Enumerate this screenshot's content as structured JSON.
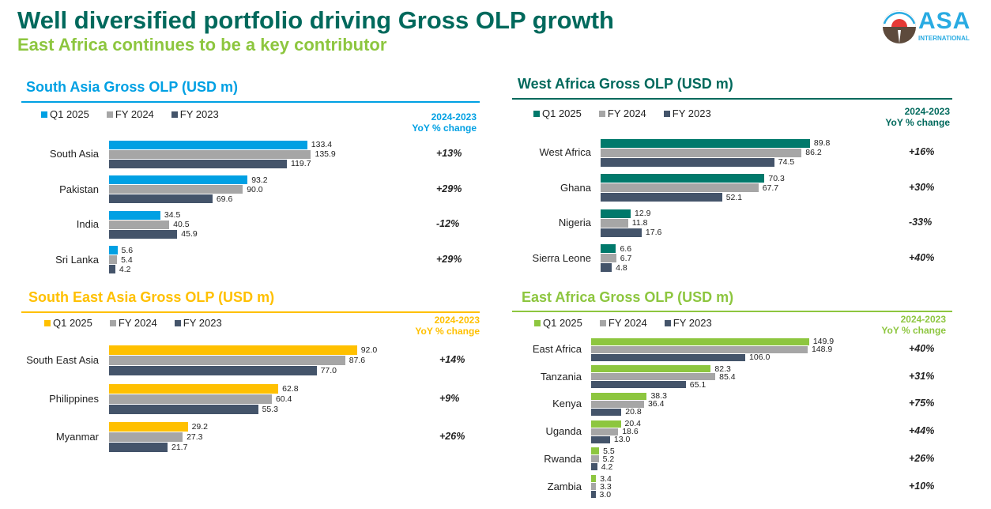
{
  "header": {
    "title": "Well diversified portfolio driving Gross OLP growth",
    "subtitle": "East Africa continues to be a key contributor"
  },
  "logo": {
    "name": "ASA",
    "sub": "INTERNATIONAL"
  },
  "legend": [
    "Q1 2025",
    "FY 2024",
    "FY 2023"
  ],
  "yoy_header": [
    "2024-2023",
    "YoY % change"
  ],
  "colors": {
    "gray": "#a6a6a6",
    "dark": "#44546a"
  },
  "chart_data": [
    {
      "type": "bar",
      "title": "South Asia Gross OLP  (USD m)",
      "color": "#00a0e3",
      "categories": [
        "South Asia",
        "Pakistan",
        "India",
        "Sri Lanka"
      ],
      "series": [
        {
          "name": "Q1 2025",
          "values": [
            133.4,
            93.2,
            34.5,
            5.6
          ]
        },
        {
          "name": "FY 2024",
          "values": [
            135.9,
            90.0,
            40.5,
            5.4
          ]
        },
        {
          "name": "FY 2023",
          "values": [
            119.7,
            69.6,
            45.9,
            4.2
          ]
        }
      ],
      "yoy": [
        "+13%",
        "+29%",
        "-12%",
        "+29%"
      ]
    },
    {
      "type": "bar",
      "title": "South East Asia Gross OLP (USD m)",
      "color": "#ffc000",
      "categories": [
        "South East Asia",
        "Philippines",
        "Myanmar"
      ],
      "series": [
        {
          "name": "Q1 2025",
          "values": [
            92.0,
            62.8,
            29.2
          ]
        },
        {
          "name": "FY 2024",
          "values": [
            87.6,
            60.4,
            27.3
          ]
        },
        {
          "name": "FY 2023",
          "values": [
            77.0,
            55.3,
            21.7
          ]
        }
      ],
      "yoy": [
        "+14%",
        "+9%",
        "+26%"
      ]
    },
    {
      "type": "bar",
      "title": "West Africa Gross OLP (USD m)",
      "color": "#00796b",
      "categories": [
        "West Africa",
        "Ghana",
        "Nigeria",
        "Sierra Leone"
      ],
      "series": [
        {
          "name": "Q1 2025",
          "values": [
            89.8,
            70.3,
            12.9,
            6.6
          ]
        },
        {
          "name": "FY 2024",
          "values": [
            86.2,
            67.7,
            11.8,
            6.7
          ]
        },
        {
          "name": "FY 2023",
          "values": [
            74.5,
            52.1,
            17.6,
            4.8
          ]
        }
      ],
      "yoy": [
        "+16%",
        "+30%",
        "-33%",
        "+40%"
      ]
    },
    {
      "type": "bar",
      "title": "East Africa Gross OLP (USD m)",
      "color": "#8dc63f",
      "categories": [
        "East Africa",
        "Tanzania",
        "Kenya",
        "Uganda",
        "Rwanda",
        "Zambia"
      ],
      "series": [
        {
          "name": "Q1 2025",
          "values": [
            149.9,
            82.3,
            38.3,
            20.4,
            5.5,
            3.4
          ]
        },
        {
          "name": "FY 2024",
          "values": [
            148.9,
            85.4,
            36.4,
            18.6,
            5.2,
            3.3
          ]
        },
        {
          "name": "FY 2023",
          "values": [
            106.0,
            65.1,
            20.8,
            13.0,
            4.2,
            3.0
          ]
        }
      ],
      "yoy": [
        "+40%",
        "+31%",
        "+75%",
        "+44%",
        "+26%",
        "+10%"
      ]
    }
  ]
}
